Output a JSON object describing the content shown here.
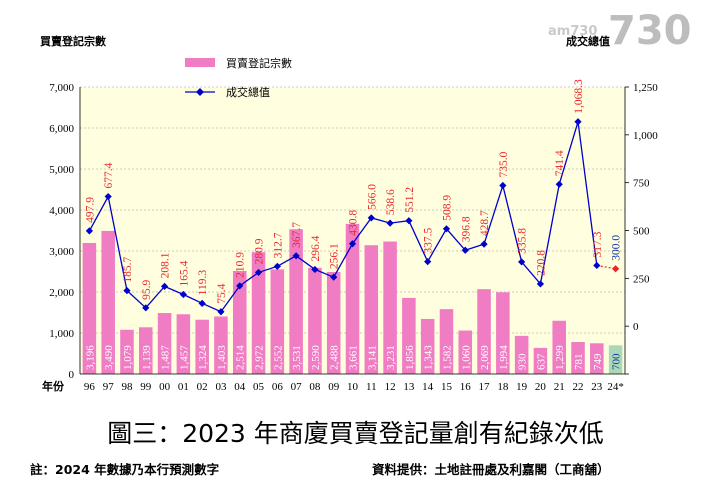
{
  "caption": "圖三：2023 年商廈買賣登記量創有紀錄次低",
  "note_left": "註：2024 年數據乃本行預測數字",
  "note_right": "資料提供：土地註冊處及利嘉閣（工商舖）",
  "logo": {
    "small": "am730",
    "large": "730"
  },
  "colors": {
    "bar": "#f07cc4",
    "line": "#0000cc",
    "label": "#e8252b",
    "forecast_bar": "#a9d9b7",
    "forecast_point": "#e8252b",
    "plot_bg": "#ffffe0"
  },
  "chart_data": {
    "type": "bar",
    "title": "",
    "ylabel_left": "買賣登記宗數",
    "ylabel_right": "成交總值",
    "xlabel": "年份",
    "categories": [
      "96",
      "97",
      "98",
      "99",
      "00",
      "01",
      "02",
      "03",
      "04",
      "05",
      "06",
      "07",
      "08",
      "09",
      "10",
      "11",
      "12",
      "13",
      "14",
      "15",
      "16",
      "17",
      "18",
      "19",
      "20",
      "21",
      "22",
      "23",
      "24*"
    ],
    "ylim_left": [
      0,
      7000
    ],
    "yticks_left": [
      "0",
      "1,000",
      "2,000",
      "3,000",
      "4,000",
      "5,000",
      "6,000",
      "7,000"
    ],
    "ylim_right": [
      -250,
      1250
    ],
    "yticks_right": [
      "",
      "0",
      "250",
      "500",
      "750",
      "1,000",
      "1,250"
    ],
    "grid": true,
    "legend_position": "top-left",
    "series": [
      {
        "name": "買賣登記宗數",
        "kind": "bar",
        "axis": "left",
        "values": [
          3196,
          3490,
          1079,
          1139,
          1487,
          1457,
          1324,
          1403,
          2514,
          2972,
          2552,
          3531,
          2590,
          2488,
          3661,
          3141,
          3231,
          1856,
          1343,
          1582,
          1060,
          2069,
          1994,
          930,
          637,
          1299,
          781,
          749,
          700
        ],
        "labels": [
          "3,196",
          "3,490",
          "1,079",
          "1,139",
          "1,487",
          "1,457",
          "1,324",
          "1,403",
          "2,514",
          "2,972",
          "2,552",
          "3,531",
          "2,590",
          "2,488",
          "3,661",
          "3,141",
          "3,231",
          "1,856",
          "1,343",
          "1,582",
          "1,060",
          "2,069",
          "1,994",
          "930",
          "637",
          "1,299",
          "781",
          "749",
          "700"
        ]
      },
      {
        "name": "成交總值",
        "kind": "line",
        "axis": "right",
        "values": [
          497.9,
          677.4,
          185.7,
          95.9,
          208.1,
          165.4,
          119.3,
          75.4,
          210.9,
          280.9,
          312.7,
          367.7,
          296.4,
          256.1,
          430.8,
          566.0,
          538.6,
          551.2,
          337.5,
          508.9,
          396.8,
          428.7,
          735.0,
          335.8,
          220.8,
          741.4,
          1068.3,
          317.3,
          300.0
        ],
        "labels": [
          "497.9",
          "677.4",
          "185.7",
          "95.9",
          "208.1",
          "165.4",
          "119.3",
          "75.4",
          "210.9",
          "280.9",
          "312.7",
          "367.7",
          "296.4",
          "256.1",
          "430.8",
          "566.0",
          "538.6",
          "551.2",
          "337.5",
          "508.9",
          "396.8",
          "428.7",
          "735.0",
          "335.8",
          "220.8",
          "741.4",
          "1,068.3",
          "317.3",
          "300.0"
        ]
      }
    ]
  }
}
